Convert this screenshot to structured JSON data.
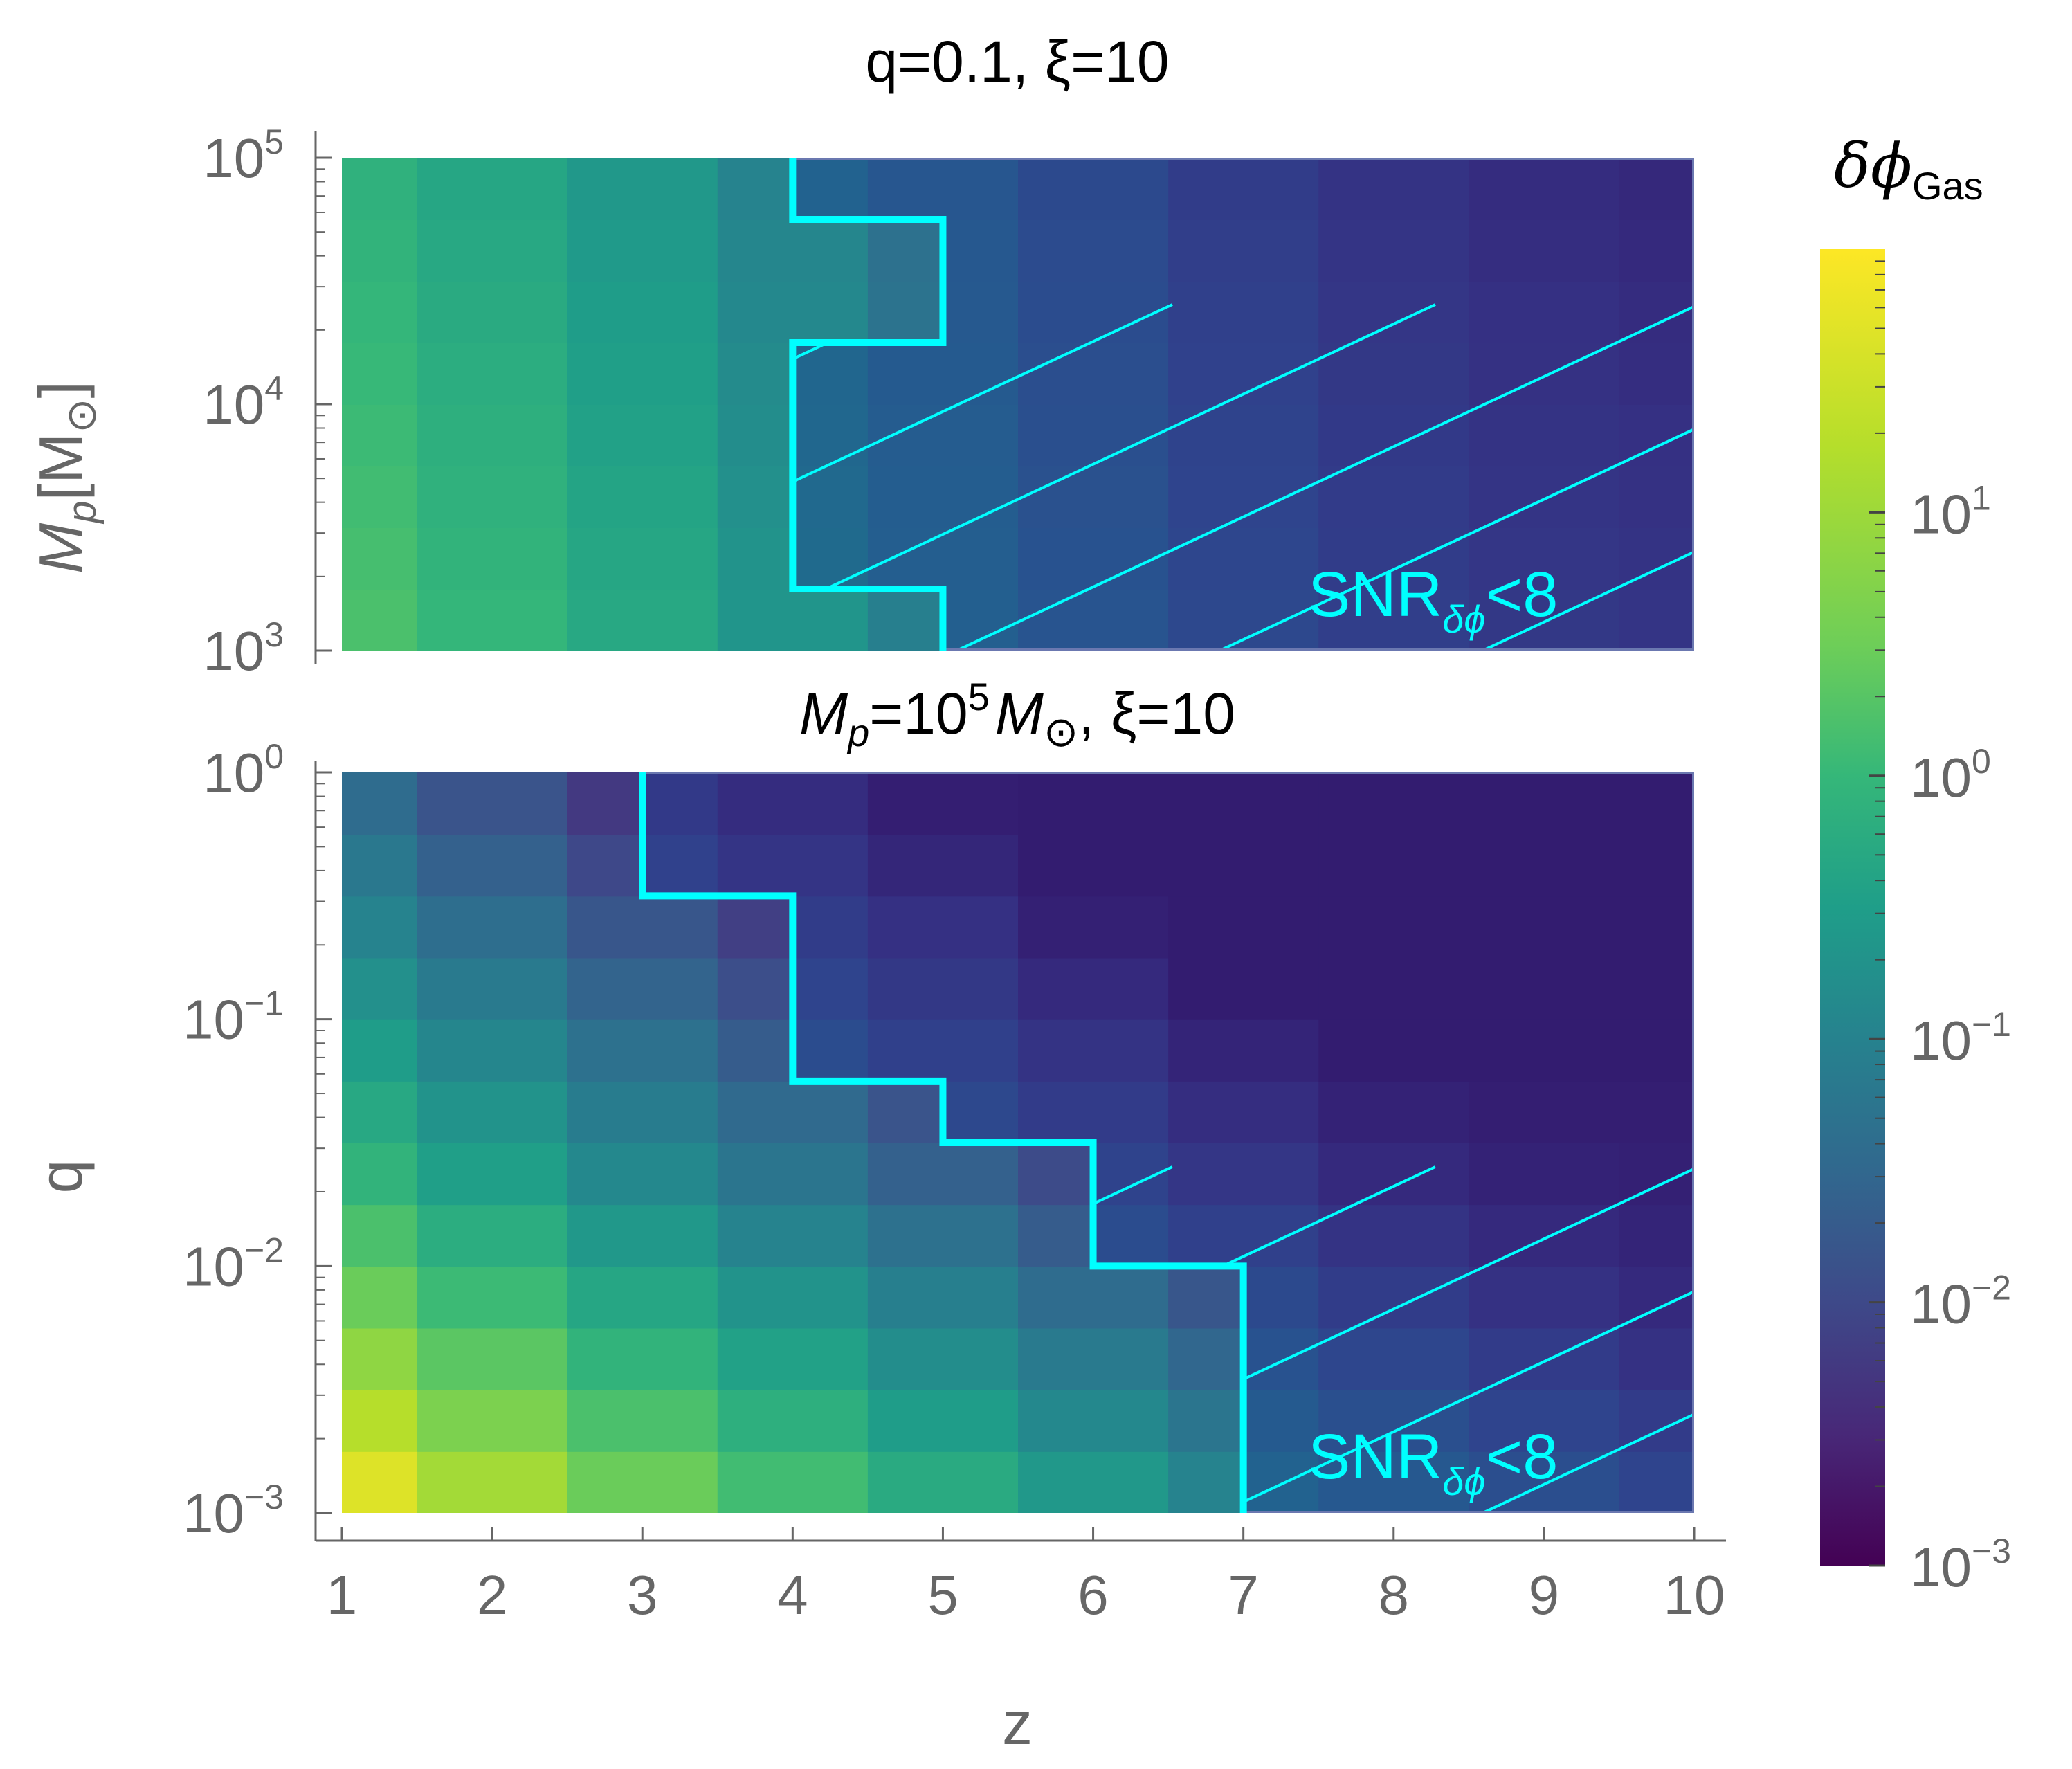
{
  "colors": {
    "boundary": "#00ffff",
    "hatch": "#00ffff",
    "shade": "#203a90",
    "axis": "#666666"
  },
  "colorscale": [
    "#fde725",
    "#b5de2b",
    "#6ece58",
    "#35b779",
    "#1f9e89",
    "#26828e",
    "#31688e",
    "#3e4989",
    "#482878",
    "#440154"
  ],
  "chart_data": [
    {
      "type": "heatmap",
      "title": "q=0.1, ξ=10",
      "xlabel": "",
      "ylabel": "M_p[M_⊙]",
      "x": [
        1,
        2,
        3,
        4,
        5,
        6,
        7,
        8,
        9,
        10
      ],
      "y_log10": [
        3.0,
        3.25,
        3.5,
        3.75,
        4.0,
        4.25,
        4.5,
        4.75,
        5.0
      ],
      "ylim_log10": [
        3,
        5
      ],
      "yticks": [
        {
          "base": "10",
          "exp": "3",
          "v": 3
        },
        {
          "base": "10",
          "exp": "4",
          "v": 4
        },
        {
          "base": "10",
          "exp": "5",
          "v": 5
        }
      ],
      "log10_values": [
        [
          0.55,
          0.3,
          0.0,
          -0.4,
          -0.85,
          -1.3,
          -1.7,
          -2.0,
          -2.2,
          -2.3
        ],
        [
          0.5,
          0.25,
          -0.05,
          -0.45,
          -0.9,
          -1.35,
          -1.75,
          -2.05,
          -2.25,
          -2.35
        ],
        [
          0.45,
          0.2,
          -0.1,
          -0.5,
          -0.95,
          -1.4,
          -1.8,
          -2.1,
          -2.3,
          -2.4
        ],
        [
          0.4,
          0.15,
          -0.15,
          -0.55,
          -1.0,
          -1.45,
          -1.85,
          -2.15,
          -2.35,
          -2.45
        ],
        [
          0.35,
          0.1,
          -0.2,
          -0.6,
          -1.05,
          -1.5,
          -1.9,
          -2.2,
          -2.4,
          -2.5
        ],
        [
          0.3,
          0.05,
          -0.25,
          -0.65,
          -1.1,
          -1.55,
          -1.95,
          -2.25,
          -2.45,
          -2.55
        ],
        [
          0.25,
          0.0,
          -0.3,
          -0.7,
          -1.15,
          -1.6,
          -2.0,
          -2.3,
          -2.5,
          -2.6
        ],
        [
          0.2,
          -0.05,
          -0.35,
          -0.75,
          -1.2,
          -1.65,
          -2.05,
          -2.35,
          -2.55,
          -2.65
        ]
      ],
      "snr_region_label": {
        "main": "SNR",
        "sub": "δϕ",
        "rest": "<8"
      },
      "snr_boundary": [
        [
          4,
          5.0
        ],
        [
          4,
          4.75
        ],
        [
          5,
          4.75
        ],
        [
          5,
          4.25
        ],
        [
          4,
          4.25
        ],
        [
          4,
          3.25
        ],
        [
          5,
          3.25
        ],
        [
          5,
          3.0
        ]
      ]
    },
    {
      "type": "heatmap",
      "title": "M_p=10^5 M_⊙, ξ=10",
      "xlabel": "z",
      "ylabel": "q",
      "x": [
        1,
        2,
        3,
        4,
        5,
        6,
        7,
        8,
        9,
        10
      ],
      "y_log10": [
        -3.0,
        -2.75,
        -2.5,
        -2.25,
        -2.0,
        -1.75,
        -1.5,
        -1.25,
        -1.0,
        -0.75,
        -0.5,
        -0.25,
        0.0
      ],
      "ylim_log10": [
        -3,
        0
      ],
      "yticks": [
        {
          "base": "10",
          "exp": "−3",
          "v": -3
        },
        {
          "base": "10",
          "exp": "−2",
          "v": -2
        },
        {
          "base": "10",
          "exp": "−1",
          "v": -1
        },
        {
          "base": "10",
          "exp": "0",
          "v": 0
        }
      ],
      "xticks": [
        "1",
        "2",
        "3",
        "4",
        "5",
        "6",
        "7",
        "8",
        "9",
        "10"
      ],
      "log10_values": [
        [
          1.75,
          1.3,
          0.85,
          0.45,
          0.05,
          -0.35,
          -0.75,
          -1.15,
          -1.5,
          -1.8
        ],
        [
          1.45,
          1.0,
          0.55,
          0.15,
          -0.25,
          -0.65,
          -1.05,
          -1.45,
          -1.8,
          -2.1
        ],
        [
          1.15,
          0.7,
          0.25,
          -0.15,
          -0.55,
          -0.95,
          -1.35,
          -1.75,
          -2.1,
          -2.4
        ],
        [
          0.85,
          0.4,
          -0.05,
          -0.45,
          -0.85,
          -1.25,
          -1.65,
          -2.05,
          -2.4,
          -2.6
        ],
        [
          0.55,
          0.1,
          -0.35,
          -0.75,
          -1.15,
          -1.55,
          -1.95,
          -2.35,
          -2.6,
          -2.75
        ],
        [
          0.25,
          -0.2,
          -0.65,
          -1.05,
          -1.45,
          -1.85,
          -2.25,
          -2.6,
          -2.8,
          -2.85
        ],
        [
          0.0,
          -0.45,
          -0.9,
          -1.3,
          -1.7,
          -2.1,
          -2.5,
          -2.8,
          -2.9,
          -2.9
        ],
        [
          -0.25,
          -0.7,
          -1.15,
          -1.55,
          -1.95,
          -2.35,
          -2.75,
          -2.95,
          -2.95,
          -2.95
        ],
        [
          -0.5,
          -0.95,
          -1.4,
          -1.8,
          -2.2,
          -2.6,
          -2.95,
          -2.95,
          -2.95,
          -2.95
        ],
        [
          -0.75,
          -1.2,
          -1.65,
          -2.05,
          -2.45,
          -2.85,
          -2.95,
          -2.95,
          -2.95,
          -2.95
        ],
        [
          -1.0,
          -1.45,
          -1.9,
          -2.3,
          -2.7,
          -2.95,
          -2.95,
          -2.95,
          -2.95,
          -2.95
        ],
        [
          -1.25,
          -1.7,
          -2.15,
          -2.55,
          -2.9,
          -2.95,
          -2.95,
          -2.95,
          -2.95,
          -2.95
        ]
      ],
      "snr_region_label": {
        "main": "SNR",
        "sub": "δϕ",
        "rest": "<8"
      },
      "snr_boundary": [
        [
          3,
          0.0
        ],
        [
          3,
          -0.5
        ],
        [
          4,
          -0.5
        ],
        [
          4,
          -1.25
        ],
        [
          5,
          -1.25
        ],
        [
          5,
          -1.5
        ],
        [
          6,
          -1.5
        ],
        [
          6,
          -2.0
        ],
        [
          7,
          -2.0
        ],
        [
          7,
          -3.0
        ]
      ]
    }
  ],
  "colorbar": {
    "title_main": "δϕ",
    "title_sub": "Gas",
    "range_log10": [
      -3,
      2
    ],
    "ticks": [
      {
        "base": "10",
        "exp": "−3",
        "v": -3
      },
      {
        "base": "10",
        "exp": "−2",
        "v": -2
      },
      {
        "base": "10",
        "exp": "−1",
        "v": -1
      },
      {
        "base": "10",
        "exp": "0",
        "v": 0
      },
      {
        "base": "10",
        "exp": "1",
        "v": 1
      }
    ]
  },
  "labels": {
    "top_title": "q=0.1, ξ=10",
    "bottom_title_parts": [
      "M",
      "p",
      "=10",
      "5",
      "M",
      "⊙",
      ", ξ=10"
    ],
    "top_ylabel_parts": [
      "M",
      "p",
      "[M",
      "⊙",
      "]"
    ],
    "bottom_ylabel": "q",
    "xlabel": "z"
  }
}
